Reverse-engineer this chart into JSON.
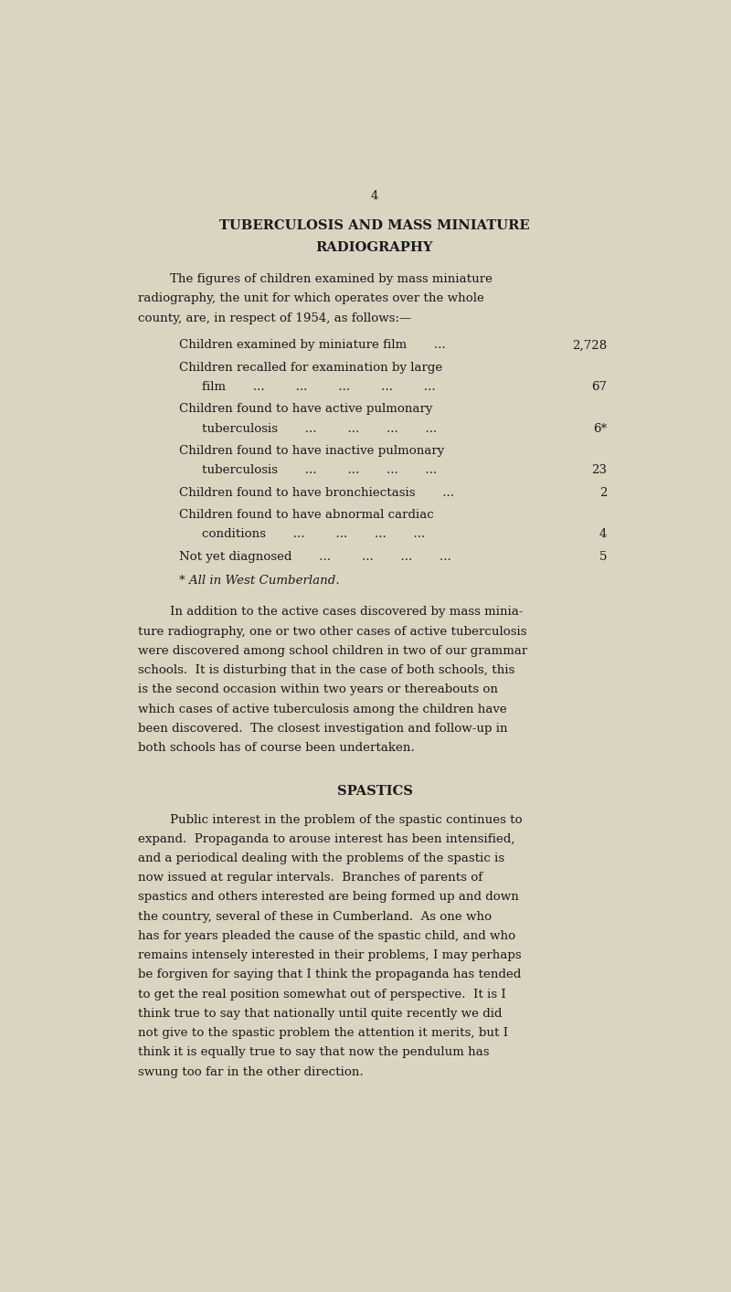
{
  "bg_color": "#d9d5c0",
  "text_color": "#1a1a1a",
  "page_number": "4",
  "title_line1": "TUBERCULOSIS AND MASS MINIATURE",
  "title_line2": "RADIOGRAPHY",
  "footnote": "* All in West Cumberland.",
  "section2_title": "SPASTICS"
}
